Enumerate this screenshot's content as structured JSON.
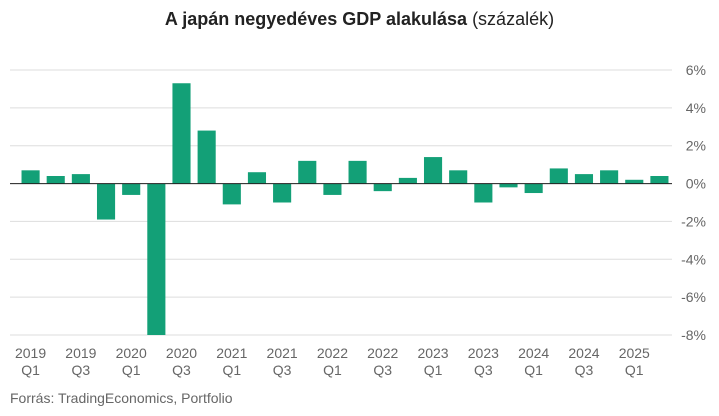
{
  "title_bold": "A japán negyedéves GDP alakulása",
  "title_light": "(százalék)",
  "source": "Forrás: TradingEconomics, Portfolio",
  "colors": {
    "bar": "#13a077",
    "grid": "#dddddd",
    "axis_text": "#666666"
  },
  "chart_data": {
    "type": "bar",
    "title": "A japán negyedéves GDP alakulása (százalék)",
    "xlabel": "",
    "ylabel": "",
    "ylim": [
      -8,
      6
    ],
    "yticks": [
      6,
      4,
      2,
      0,
      -2,
      -4,
      -6,
      -8
    ],
    "ytick_labels": [
      "6%",
      "4%",
      "2%",
      "0%",
      "-2%",
      "-4%",
      "-6%",
      "-8%"
    ],
    "grid": true,
    "categories": [
      "2019 Q1",
      "2019 Q2",
      "2019 Q3",
      "2019 Q4",
      "2020 Q1",
      "2020 Q2",
      "2020 Q3",
      "2020 Q4",
      "2021 Q1",
      "2021 Q2",
      "2021 Q3",
      "2021 Q4",
      "2022 Q1",
      "2022 Q2",
      "2022 Q3",
      "2022 Q4",
      "2023 Q1",
      "2023 Q2",
      "2023 Q3",
      "2023 Q4",
      "2024 Q1",
      "2024 Q2",
      "2024 Q3",
      "2024 Q4",
      "2025 Q1",
      "2025 Q2"
    ],
    "values": [
      0.7,
      0.4,
      0.5,
      -1.9,
      -0.6,
      -8.0,
      5.3,
      2.8,
      -1.1,
      0.6,
      -1.0,
      1.2,
      -0.6,
      1.2,
      -0.4,
      0.3,
      1.4,
      0.7,
      -1.0,
      -0.2,
      -0.5,
      0.8,
      0.5,
      0.7,
      0.2,
      0.4
    ],
    "xtick_labels": [
      {
        "index": 0,
        "line1": "2019",
        "line2": "Q1"
      },
      {
        "index": 2,
        "line1": "2019",
        "line2": "Q3"
      },
      {
        "index": 4,
        "line1": "2020",
        "line2": "Q1"
      },
      {
        "index": 6,
        "line1": "2020",
        "line2": "Q3"
      },
      {
        "index": 8,
        "line1": "2021",
        "line2": "Q1"
      },
      {
        "index": 10,
        "line1": "2021",
        "line2": "Q3"
      },
      {
        "index": 12,
        "line1": "2022",
        "line2": "Q1"
      },
      {
        "index": 14,
        "line1": "2022",
        "line2": "Q3"
      },
      {
        "index": 16,
        "line1": "2023",
        "line2": "Q1"
      },
      {
        "index": 18,
        "line1": "2023",
        "line2": "Q3"
      },
      {
        "index": 20,
        "line1": "2024",
        "line2": "Q1"
      },
      {
        "index": 22,
        "line1": "2024",
        "line2": "Q3"
      },
      {
        "index": 24,
        "line1": "2025",
        "line2": "Q1"
      }
    ]
  }
}
